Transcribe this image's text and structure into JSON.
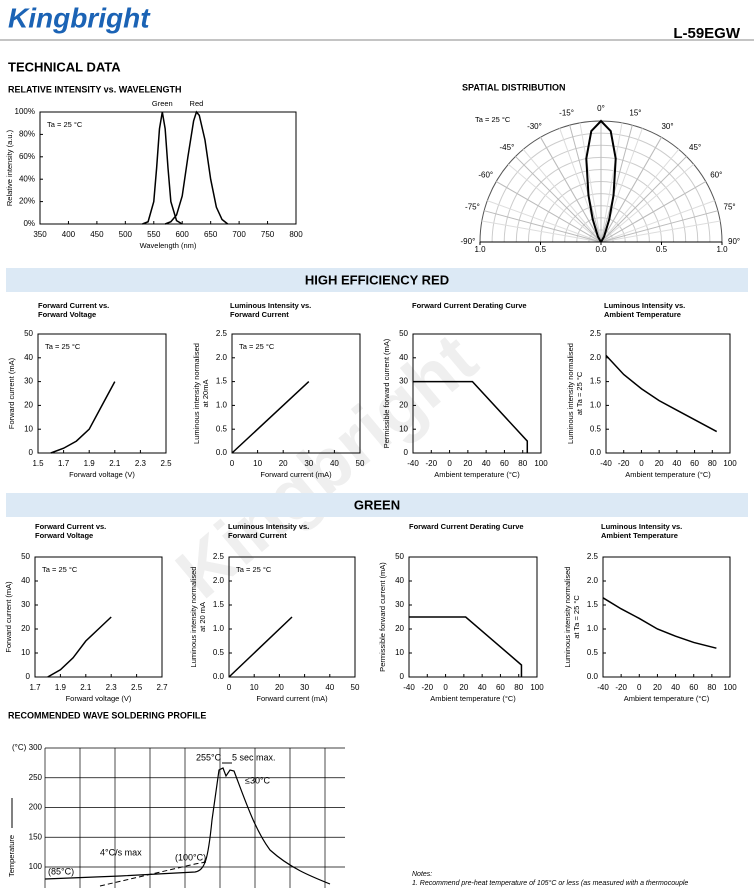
{
  "header": {
    "logo": "Kingbright",
    "part": "L-59EGW"
  },
  "section_title": "TECHNICAL DATA",
  "watermark": "Kingbright",
  "sections": [
    "HIGH EFFICIENCY RED",
    "GREEN"
  ],
  "chart_data": [
    {
      "type": "line",
      "title": [
        "RELATIVE INTENSITY vs. WAVELENGTH"
      ],
      "xlabel": "Wavelength (nm)",
      "ylabel": [
        "Relative intensity (a.u.)"
      ],
      "annotation": "Ta = 25 °C",
      "xlim": [
        350,
        800
      ],
      "xticks": [
        350,
        400,
        450,
        500,
        550,
        600,
        650,
        700,
        750,
        800
      ],
      "ylim": [
        0,
        100
      ],
      "yticks": [
        {
          "value": 0,
          "label": "0%"
        },
        {
          "value": 20,
          "label": "20%"
        },
        {
          "value": 40,
          "label": "40%"
        },
        {
          "value": 60,
          "label": "60%"
        },
        {
          "value": 80,
          "label": "80%"
        },
        {
          "value": 100,
          "label": "100%"
        }
      ],
      "series": [
        {
          "name": "Green",
          "color": "#000000",
          "x": [
            530,
            540,
            550,
            555,
            560,
            565,
            570,
            575,
            580,
            590,
            600
          ],
          "values": [
            0,
            2,
            20,
            50,
            85,
            100,
            85,
            50,
            20,
            3,
            0
          ]
        },
        {
          "name": "Red",
          "color": "#000000",
          "x": [
            570,
            580,
            590,
            600,
            610,
            620,
            625,
            630,
            640,
            650,
            660,
            670,
            680
          ],
          "values": [
            0,
            2,
            8,
            25,
            60,
            92,
            100,
            97,
            75,
            40,
            15,
            4,
            0
          ]
        }
      ]
    },
    {
      "type": "polar",
      "title": [
        "SPATIAL DISTRIBUTION"
      ],
      "annotation": "Ta = 25 °C",
      "rlim": [
        0,
        1
      ],
      "rticks": [
        {
          "value": 0,
          "label": "0.0"
        },
        {
          "value": 0.5,
          "label": "0.5"
        },
        {
          "value": 1,
          "label": "1.0"
        }
      ],
      "thetaticks": [
        {
          "value": -90,
          "label": "-90°"
        },
        {
          "value": -75,
          "label": "-75°"
        },
        {
          "value": -60,
          "label": "-60°"
        },
        {
          "value": -45,
          "label": "-45°"
        },
        {
          "value": -30,
          "label": "-30°"
        },
        {
          "value": -15,
          "label": "-15°"
        },
        {
          "value": 0,
          "label": "0°"
        },
        {
          "value": 15,
          "label": "15°"
        },
        {
          "value": 30,
          "label": "30°"
        },
        {
          "value": 45,
          "label": "45°"
        },
        {
          "value": 60,
          "label": "60°"
        },
        {
          "value": 75,
          "label": "75°"
        },
        {
          "value": 90,
          "label": "90°"
        }
      ],
      "series": [
        {
          "color": "#000000",
          "theta": [
            -90,
            -30,
            -20,
            -15,
            -10,
            -5,
            0,
            5,
            10,
            15,
            20,
            30,
            90
          ],
          "values": [
            0,
            0.05,
            0.2,
            0.4,
            0.7,
            0.92,
            1,
            0.92,
            0.7,
            0.4,
            0.2,
            0.05,
            0
          ]
        }
      ]
    },
    {
      "type": "line",
      "title": [
        "Forward Current vs.",
        "Forward Voltage"
      ],
      "xlabel": "Forward voltage (V)",
      "ylabel": [
        "Forward current (mA)"
      ],
      "annotation": "Ta = 25 °C",
      "xlim": [
        1.5,
        2.5
      ],
      "xticks": [
        1.5,
        1.7,
        1.9,
        2.1,
        2.3,
        2.5
      ],
      "ylim": [
        0,
        50
      ],
      "yticks": [
        0,
        10,
        20,
        30,
        40,
        50
      ],
      "series": [
        {
          "color": "#000000",
          "x": [
            1.6,
            1.7,
            1.8,
            1.9,
            2.0,
            2.1
          ],
          "values": [
            0,
            2,
            5,
            10,
            20,
            30
          ]
        }
      ]
    },
    {
      "type": "line",
      "title": [
        "Luminous Intensity vs.",
        "Forward Current"
      ],
      "xlabel": "Forward current (mA)",
      "ylabel": [
        "Luminous intensity normalised",
        "at 20mA"
      ],
      "annotation": "Ta = 25 °C",
      "xlim": [
        0,
        50
      ],
      "xticks": [
        0,
        10,
        20,
        30,
        40,
        50
      ],
      "ylim": [
        0,
        2.5
      ],
      "yticks": [
        {
          "value": 0,
          "label": "0.0"
        },
        0.5,
        {
          "value": 1,
          "label": "1.0"
        },
        1.5,
        {
          "value": 2,
          "label": "2.0"
        },
        2.5
      ],
      "series": [
        {
          "color": "#000000",
          "x": [
            0,
            30
          ],
          "values": [
            0,
            1.5
          ]
        }
      ]
    },
    {
      "type": "line",
      "title": [
        "Forward Current Derating  Curve"
      ],
      "xlabel": "Ambient temperature (°C)",
      "ylabel": [
        "Permissible forward current (mA)"
      ],
      "xlim": [
        -40,
        100
      ],
      "xticks": [
        -40,
        -20,
        0,
        20,
        40,
        60,
        80,
        100
      ],
      "ylim": [
        0,
        50
      ],
      "yticks": [
        0,
        10,
        20,
        30,
        40,
        50
      ],
      "series": [
        {
          "color": "#000000",
          "x": [
            -40,
            25,
            85,
            85
          ],
          "values": [
            30,
            30,
            5,
            0
          ]
        }
      ]
    },
    {
      "type": "line",
      "title": [
        "Luminous Intensity vs.",
        "Ambient Temperature"
      ],
      "xlabel": "Ambient temperature (°C)",
      "ylabel": [
        "Luminous intensity normalised",
        "at Ta = 25 °C"
      ],
      "xlim": [
        -40,
        100
      ],
      "xticks": [
        -40,
        -20,
        0,
        20,
        40,
        60,
        80,
        100
      ],
      "ylim": [
        0,
        2.5
      ],
      "yticks": [
        {
          "value": 0,
          "label": "0.0"
        },
        0.5,
        {
          "value": 1,
          "label": "1.0"
        },
        1.5,
        {
          "value": 2,
          "label": "2.0"
        },
        2.5
      ],
      "series": [
        {
          "color": "#000000",
          "x": [
            -40,
            -20,
            0,
            20,
            40,
            60,
            85
          ],
          "values": [
            2.05,
            1.65,
            1.35,
            1.1,
            0.9,
            0.7,
            0.45
          ]
        }
      ]
    },
    {
      "type": "line",
      "title": [
        "Forward Current vs.",
        "Forward Voltage"
      ],
      "xlabel": "Forward voltage (V)",
      "ylabel": [
        "Forward current (mA)"
      ],
      "annotation": "Ta = 25 °C",
      "xlim": [
        1.7,
        2.7
      ],
      "xticks": [
        1.7,
        1.9,
        2.1,
        2.3,
        2.5,
        2.7
      ],
      "ylim": [
        0,
        50
      ],
      "yticks": [
        0,
        10,
        20,
        30,
        40,
        50
      ],
      "series": [
        {
          "color": "#000000",
          "x": [
            1.8,
            1.9,
            2.0,
            2.1,
            2.2,
            2.3
          ],
          "values": [
            0,
            3,
            8,
            15,
            20,
            25
          ]
        }
      ]
    },
    {
      "type": "line",
      "title": [
        "Luminous Intensity vs.",
        "Forward Current"
      ],
      "xlabel": "Forward current (mA)",
      "ylabel": [
        "Luminous intensity normalised",
        "at 20 mA"
      ],
      "annotation": "Ta = 25 °C",
      "xlim": [
        0,
        50
      ],
      "xticks": [
        0,
        10,
        20,
        30,
        40,
        50
      ],
      "ylim": [
        0,
        2.5
      ],
      "yticks": [
        {
          "value": 0,
          "label": "0.0"
        },
        0.5,
        {
          "value": 1,
          "label": "1.0"
        },
        1.5,
        {
          "value": 2,
          "label": "2.0"
        },
        2.5
      ],
      "series": [
        {
          "color": "#000000",
          "x": [
            0,
            25
          ],
          "values": [
            0,
            1.25
          ]
        }
      ]
    },
    {
      "type": "line",
      "title": [
        "Forward Current Derating  Curve"
      ],
      "xlabel": "Ambient temperature (°C)",
      "ylabel": [
        "Permissible forward current (mA)"
      ],
      "xlim": [
        -40,
        100
      ],
      "xticks": [
        -40,
        -20,
        0,
        20,
        40,
        60,
        80,
        100
      ],
      "ylim": [
        0,
        50
      ],
      "yticks": [
        0,
        10,
        20,
        30,
        40,
        50
      ],
      "series": [
        {
          "color": "#000000",
          "x": [
            -40,
            22,
            83,
            83
          ],
          "values": [
            25,
            25,
            5,
            0
          ]
        }
      ]
    },
    {
      "type": "line",
      "title": [
        "Luminous Intensity vs.",
        "Ambient Temperature"
      ],
      "xlabel": "Ambient temperature (°C)",
      "ylabel": [
        "Luminous intensity normalised",
        "at Ta = 25 °C"
      ],
      "xlim": [
        -40,
        100
      ],
      "xticks": [
        -40,
        -20,
        0,
        20,
        40,
        60,
        80,
        100
      ],
      "ylim": [
        0,
        2.5
      ],
      "yticks": [
        {
          "value": 0,
          "label": "0.0"
        },
        0.5,
        {
          "value": 1,
          "label": "1.0"
        },
        1.5,
        {
          "value": 2,
          "label": "2.0"
        },
        2.5
      ],
      "series": [
        {
          "color": "#000000",
          "x": [
            -40,
            -20,
            0,
            20,
            40,
            60,
            85
          ],
          "values": [
            1.65,
            1.42,
            1.22,
            1.0,
            0.85,
            0.72,
            0.6
          ]
        }
      ]
    },
    {
      "type": "profile",
      "title": [
        "RECOMMENDED WAVE SOLDERING PROFILE"
      ],
      "ylabel": [
        "Temperature"
      ],
      "unit": "(°C)",
      "ylim": [
        0,
        300
      ],
      "yticks": [
        100,
        150,
        200,
        250,
        300
      ],
      "annotations": [
        "255°C",
        "5 sec max.",
        "≤30°C",
        "4°C/s max",
        "(100°C)",
        "(85°C)"
      ]
    }
  ],
  "notes": {
    "title": "Notes:",
    "items": [
      "1. Recommend pre-heat temperature of 105°C or less (as measured with a thermocouple"
    ]
  }
}
